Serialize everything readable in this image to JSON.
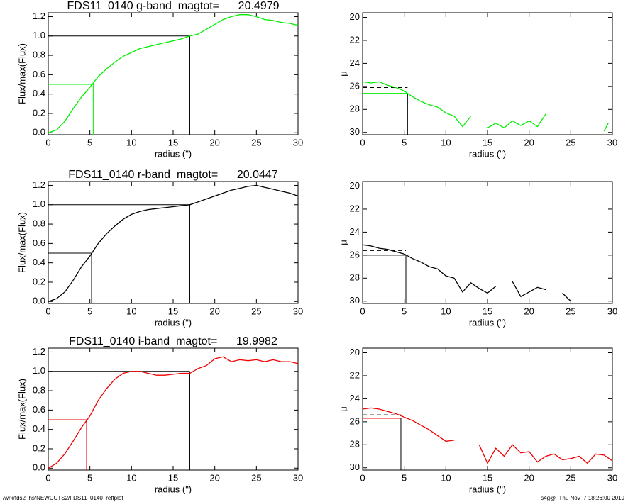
{
  "chart_data": [
    {
      "type": "line",
      "title": "FDS11_0140 g-band  magtot=      20.4979",
      "xlabel": "radius (\")",
      "ylabel": "Flux/max(Flux)",
      "xlim": [
        0,
        30
      ],
      "xticks": [
        0,
        5,
        10,
        15,
        20,
        25,
        30
      ],
      "ylim": [
        -0.02,
        1.24
      ],
      "yticks": [
        {
          "value": 0,
          "label": "0.0"
        },
        0.2,
        0.4,
        0.6,
        0.8,
        {
          "value": 1,
          "label": "1.0"
        },
        1.2
      ],
      "r_total": 17,
      "flux_total": 1.0,
      "r_half": 5.4,
      "flux_half": 0.5,
      "ref_color": "#00ee00",
      "series": [
        {
          "color": "#00ee00",
          "x": [
            0,
            1,
            2,
            3,
            4,
            5,
            6,
            7,
            8,
            9,
            10,
            11,
            12,
            13,
            14,
            15,
            16,
            17,
            18,
            19,
            20,
            21,
            22,
            23,
            24,
            25,
            26,
            27,
            28,
            29,
            30
          ],
          "values": [
            0,
            0.03,
            0.12,
            0.25,
            0.37,
            0.47,
            0.58,
            0.66,
            0.73,
            0.79,
            0.83,
            0.87,
            0.89,
            0.91,
            0.93,
            0.95,
            0.97,
            1.0,
            1.02,
            1.07,
            1.12,
            1.17,
            1.2,
            1.22,
            1.22,
            1.2,
            1.17,
            1.16,
            1.14,
            1.13,
            1.11
          ]
        }
      ]
    },
    {
      "type": "line",
      "xlabel": "radius (\")",
      "ylabel": "μ",
      "xlim": [
        0,
        30
      ],
      "xticks": [
        0,
        5,
        10,
        15,
        20,
        25,
        30
      ],
      "ylim": [
        30.2,
        19.6
      ],
      "yticks": [
        20,
        22,
        24,
        26,
        28,
        30
      ],
      "r_half": 5.4,
      "mu_eff": 26.6,
      "mu_mean": 26.1,
      "ref_color": "#00ee00",
      "series": [
        {
          "color": "#00ee00",
          "x": [
            0,
            1,
            2,
            3,
            4,
            5,
            6,
            7,
            8,
            9,
            10,
            11,
            12,
            13,
            14,
            15,
            16,
            17,
            18,
            19,
            20,
            21,
            22,
            23,
            24,
            25,
            26,
            27,
            28,
            29,
            29.5
          ],
          "values": [
            25.6,
            25.7,
            25.6,
            25.9,
            26.1,
            26.4,
            26.9,
            27.3,
            27.6,
            27.8,
            28.3,
            28.6,
            29.5,
            28.6,
            null,
            29.6,
            29.2,
            29.6,
            29.0,
            29.4,
            29.0,
            29.5,
            28.4,
            null,
            null,
            null,
            null,
            null,
            null,
            29.9,
            29.2
          ]
        }
      ]
    },
    {
      "type": "line",
      "title": "FDS11_0140 r-band  magtot=      20.0447",
      "xlabel": "radius (\")",
      "ylabel": "Flux/max(Flux)",
      "xlim": [
        0,
        30
      ],
      "xticks": [
        0,
        5,
        10,
        15,
        20,
        25,
        30
      ],
      "ylim": [
        -0.02,
        1.24
      ],
      "yticks": [
        {
          "value": 0,
          "label": "0.0"
        },
        0.2,
        0.4,
        0.6,
        0.8,
        {
          "value": 1,
          "label": "1.0"
        },
        1.2
      ],
      "r_total": 17,
      "flux_total": 1.0,
      "r_half": 5.2,
      "flux_half": 0.5,
      "ref_color": "#000000",
      "series": [
        {
          "color": "#000000",
          "x": [
            0,
            1,
            2,
            3,
            4,
            5,
            6,
            7,
            8,
            9,
            10,
            11,
            12,
            13,
            14,
            15,
            16,
            17,
            18,
            19,
            20,
            21,
            22,
            23,
            24,
            25,
            26,
            27,
            28,
            29,
            30
          ],
          "values": [
            0,
            0.03,
            0.1,
            0.22,
            0.36,
            0.47,
            0.6,
            0.7,
            0.78,
            0.85,
            0.9,
            0.93,
            0.95,
            0.96,
            0.97,
            0.98,
            0.99,
            1.0,
            1.03,
            1.06,
            1.09,
            1.12,
            1.15,
            1.17,
            1.19,
            1.2,
            1.18,
            1.16,
            1.14,
            1.12,
            1.09
          ]
        }
      ]
    },
    {
      "type": "line",
      "xlabel": "radius (\")",
      "ylabel": "μ",
      "xlim": [
        0,
        30
      ],
      "xticks": [
        0,
        5,
        10,
        15,
        20,
        25,
        30
      ],
      "ylim": [
        30.2,
        19.6
      ],
      "yticks": [
        20,
        22,
        24,
        26,
        28,
        30
      ],
      "r_half": 5.2,
      "mu_eff": 26.0,
      "mu_mean": 25.6,
      "ref_color": "#000000",
      "series": [
        {
          "color": "#000000",
          "x": [
            0,
            1,
            2,
            3,
            4,
            5,
            6,
            7,
            8,
            9,
            10,
            11,
            12,
            13,
            14,
            15,
            16,
            17,
            18,
            19,
            20,
            21,
            22,
            23,
            24,
            25,
            26,
            27,
            28,
            29,
            30
          ],
          "values": [
            25.1,
            25.2,
            25.4,
            25.5,
            25.7,
            25.9,
            26.3,
            26.6,
            27.0,
            27.2,
            27.8,
            28.0,
            29.2,
            28.4,
            28.9,
            29.3,
            28.7,
            null,
            28.3,
            29.6,
            29.2,
            28.8,
            29.0,
            null,
            29.3,
            30.0,
            null,
            null,
            null,
            null,
            null
          ]
        }
      ]
    },
    {
      "type": "line",
      "title": "FDS11_0140 i-band  magtot=      19.9982",
      "xlabel": "radius (\")",
      "ylabel": "Flux/max(Flux)",
      "xlim": [
        0,
        30
      ],
      "xticks": [
        0,
        5,
        10,
        15,
        20,
        25,
        30
      ],
      "ylim": [
        -0.02,
        1.24
      ],
      "yticks": [
        {
          "value": 0,
          "label": "0.0"
        },
        0.2,
        0.4,
        0.6,
        0.8,
        {
          "value": 1,
          "label": "1.0"
        },
        1.2
      ],
      "r_total": 17,
      "flux_total": 1.0,
      "r_half": 4.6,
      "flux_half": 0.5,
      "ref_color": "#ee0000",
      "series": [
        {
          "color": "#ee0000",
          "x": [
            0,
            1,
            2,
            3,
            4,
            5,
            6,
            7,
            8,
            9,
            10,
            11,
            12,
            13,
            14,
            15,
            16,
            17,
            18,
            19,
            20,
            21,
            22,
            23,
            24,
            25,
            26,
            27,
            28,
            29,
            30
          ],
          "values": [
            0,
            0.05,
            0.15,
            0.28,
            0.42,
            0.54,
            0.7,
            0.82,
            0.92,
            0.98,
            1.0,
            1.0,
            0.98,
            0.96,
            0.96,
            0.97,
            0.98,
            0.98,
            1.03,
            1.06,
            1.13,
            1.15,
            1.1,
            1.12,
            1.11,
            1.12,
            1.1,
            1.12,
            1.1,
            1.1,
            1.08
          ]
        }
      ]
    },
    {
      "type": "line",
      "xlabel": "radius (\")",
      "ylabel": "μ",
      "xlim": [
        0,
        30
      ],
      "xticks": [
        0,
        5,
        10,
        15,
        20,
        25,
        30
      ],
      "ylim": [
        30.2,
        19.6
      ],
      "yticks": [
        20,
        22,
        24,
        26,
        28,
        30
      ],
      "r_half": 4.6,
      "mu_eff": 25.7,
      "mu_mean": 25.4,
      "ref_color": "#ee0000",
      "series": [
        {
          "color": "#ee0000",
          "x": [
            0,
            1,
            2,
            3,
            4,
            5,
            6,
            7,
            8,
            9,
            10,
            11,
            12,
            13,
            14,
            15,
            16,
            17,
            18,
            19,
            20,
            21,
            22,
            23,
            24,
            25,
            26,
            27,
            28,
            29,
            30
          ],
          "values": [
            24.9,
            24.8,
            24.9,
            25.1,
            25.3,
            25.6,
            25.9,
            26.3,
            26.7,
            27.2,
            27.7,
            27.6,
            null,
            null,
            28.0,
            29.6,
            28.3,
            29.0,
            28.0,
            28.7,
            28.6,
            29.5,
            29.0,
            28.8,
            29.3,
            29.2,
            29.0,
            29.6,
            28.8,
            28.9,
            29.4
          ]
        }
      ]
    }
  ],
  "footer_left": "/wrk/fds2_hs/NEWCUTS2/FDS11_0140_reffplot",
  "footer_right": "s4g@  Thu Nov  7 18:26:00 2019"
}
